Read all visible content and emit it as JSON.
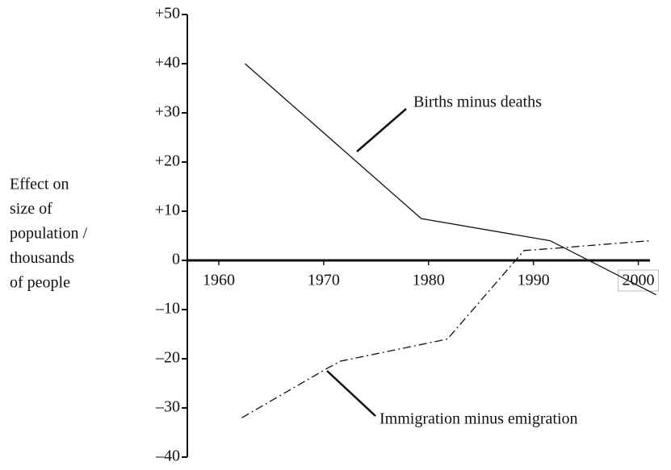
{
  "chart_data": {
    "type": "line",
    "ylabel": [
      "Effect on",
      "size of",
      "population /",
      "thousands",
      "of people"
    ],
    "xlim": [
      1957,
      2001.5
    ],
    "xticks": [
      1960,
      1970,
      1980,
      1990,
      2000
    ],
    "ylim": [
      -40,
      50
    ],
    "yticks": [
      {
        "value": 50,
        "label": "+50"
      },
      {
        "value": 40,
        "label": "+40"
      },
      {
        "value": 30,
        "label": "+30"
      },
      {
        "value": 20,
        "label": "+20"
      },
      {
        "value": 10,
        "label": "+10"
      },
      0,
      {
        "value": -10,
        "label": "–10"
      },
      {
        "value": -20,
        "label": "–20"
      },
      {
        "value": -30,
        "label": "–30"
      },
      {
        "value": -40,
        "label": "–40"
      }
    ],
    "series": [
      {
        "name": "Births minus deaths",
        "color": "#111111",
        "dash": "solid",
        "x": [
          1962.5,
          1979.3,
          1991.6,
          2001.7
        ],
        "values": [
          40,
          8.5,
          4,
          -7
        ]
      },
      {
        "name": "Immigration minus emigration",
        "color": "#111111",
        "dash": "dashdot",
        "x": [
          1962.2,
          1970.3,
          1971.6,
          1981.8,
          1989.1,
          1992.3,
          2001.1
        ],
        "values": [
          -32,
          -22,
          -20.5,
          -16,
          2,
          2.5,
          4
        ]
      }
    ]
  }
}
